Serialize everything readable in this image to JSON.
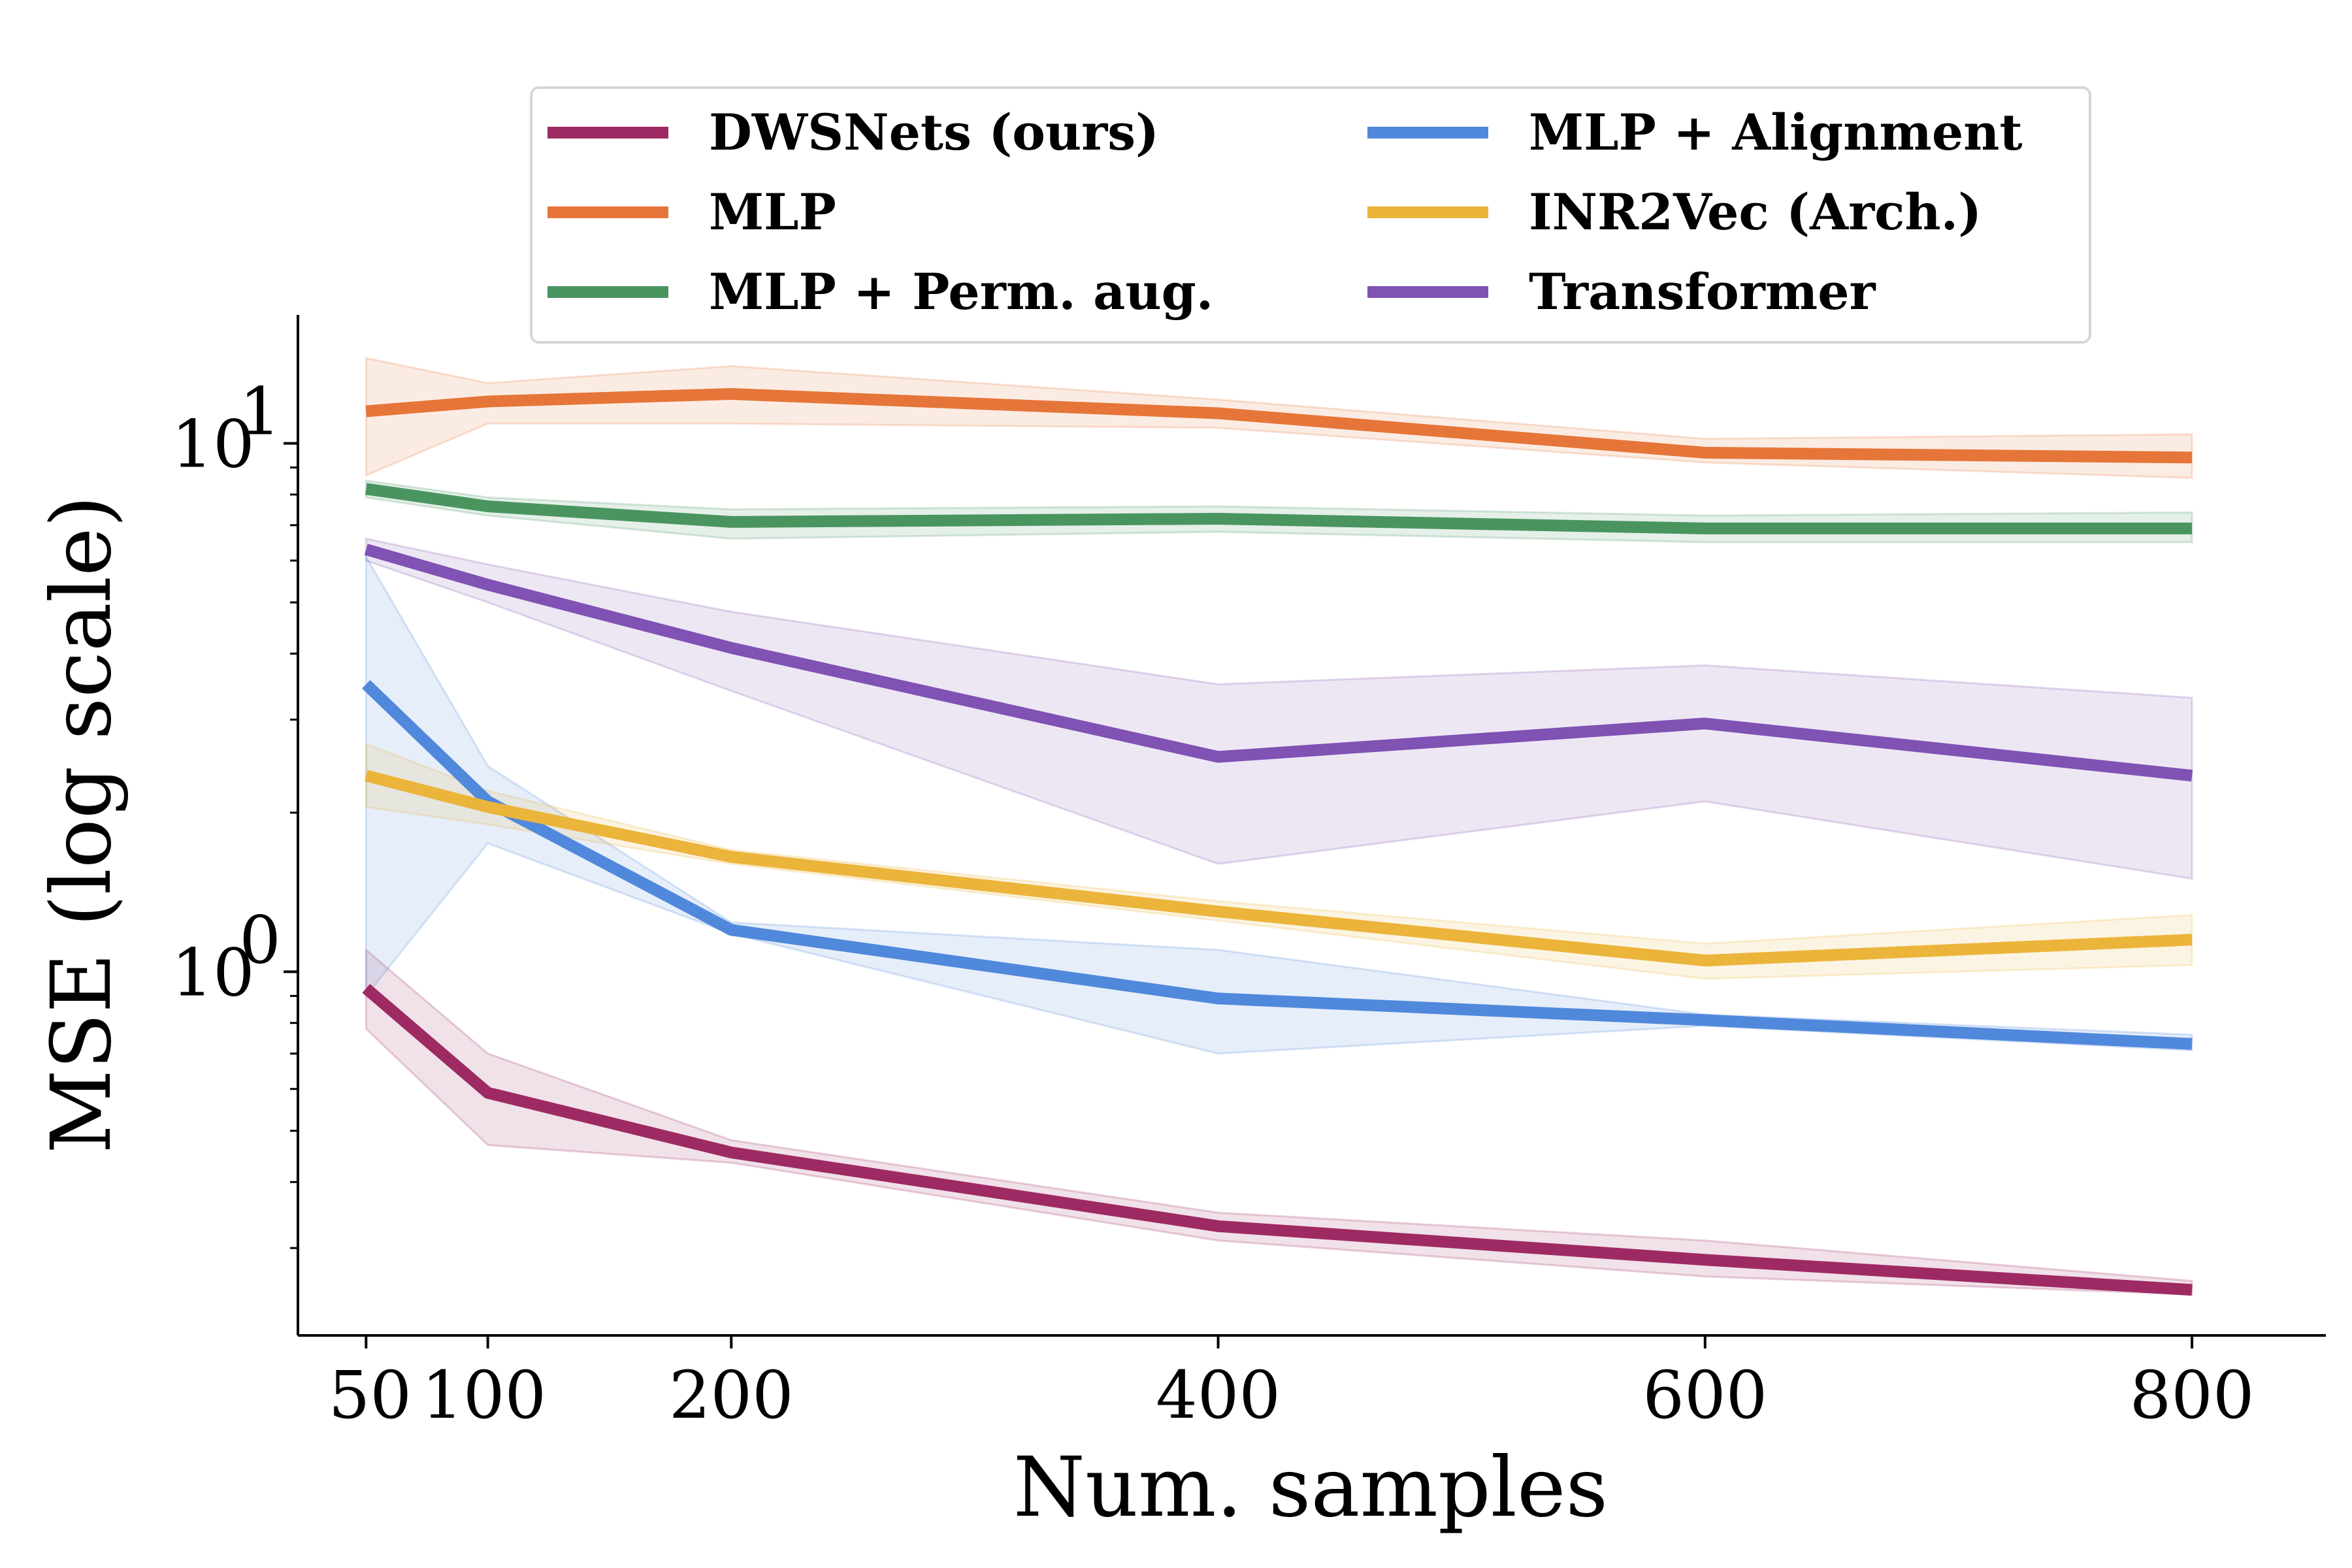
{
  "chart_data": {
    "type": "line",
    "title": "",
    "xlabel": "Num. samples",
    "ylabel": "MSE (log scale)",
    "y_scale": "log",
    "xlim": [
      22,
      855
    ],
    "ylim": [
      0.205,
      17.5
    ],
    "x": [
      50,
      100,
      200,
      400,
      600,
      800
    ],
    "x_ticks": [
      50,
      100,
      200,
      400,
      600,
      800
    ],
    "y_ticks": [
      1,
      10
    ],
    "y_tick_labels": [
      {
        "base": "10",
        "exp": "0"
      },
      {
        "base": "10",
        "exp": "1"
      }
    ],
    "grid": false,
    "legend_position": "top",
    "series": [
      {
        "name": "DWSNets (ours)",
        "color": "#9e2a63",
        "values": [
          0.93,
          0.59,
          0.455,
          0.33,
          0.285,
          0.25
        ],
        "lower": [
          0.78,
          0.47,
          0.435,
          0.31,
          0.265,
          0.245
        ],
        "upper": [
          1.1,
          0.7,
          0.48,
          0.35,
          0.31,
          0.26
        ]
      },
      {
        "name": "MLP",
        "color": "#e67539",
        "values": [
          11.5,
          12.0,
          12.4,
          11.4,
          9.6,
          9.4
        ],
        "lower": [
          8.7,
          10.9,
          10.9,
          10.7,
          9.2,
          8.6
        ],
        "upper": [
          14.5,
          13.0,
          14.0,
          12.1,
          10.2,
          10.4
        ]
      },
      {
        "name": "MLP + Perm. aug.",
        "color": "#4a9460",
        "values": [
          8.2,
          7.6,
          7.1,
          7.2,
          6.9,
          6.9
        ],
        "lower": [
          7.9,
          7.3,
          6.6,
          6.8,
          6.5,
          6.5
        ],
        "upper": [
          8.5,
          7.9,
          7.5,
          7.6,
          7.3,
          7.4
        ]
      },
      {
        "name": "Transformer",
        "color": "#7f52b3",
        "values": [
          6.3,
          5.4,
          4.1,
          2.55,
          2.95,
          2.35
        ],
        "lower": [
          6.0,
          5.0,
          3.4,
          1.6,
          2.1,
          1.5
        ],
        "upper": [
          6.6,
          5.9,
          4.8,
          3.5,
          3.8,
          3.3
        ]
      },
      {
        "name": "MLP + Alignment",
        "color": "#5088db",
        "values": [
          3.5,
          2.1,
          1.2,
          0.89,
          0.81,
          0.73
        ],
        "lower": [
          0.9,
          1.75,
          1.18,
          0.7,
          0.79,
          0.71
        ],
        "upper": [
          6.1,
          2.45,
          1.24,
          1.1,
          0.83,
          0.76
        ]
      },
      {
        "name": "INR2Vec (Arch.)",
        "color": "#ebb43a",
        "values": [
          2.35,
          2.05,
          1.65,
          1.3,
          1.05,
          1.15
        ],
        "lower": [
          2.05,
          1.9,
          1.6,
          1.25,
          0.97,
          1.03
        ],
        "upper": [
          2.7,
          2.2,
          1.7,
          1.36,
          1.13,
          1.28
        ]
      }
    ],
    "legend_order": [
      "DWSNets (ours)",
      "MLP",
      "MLP + Perm. aug.",
      "MLP + Alignment",
      "INR2Vec (Arch.)",
      "Transformer"
    ]
  }
}
